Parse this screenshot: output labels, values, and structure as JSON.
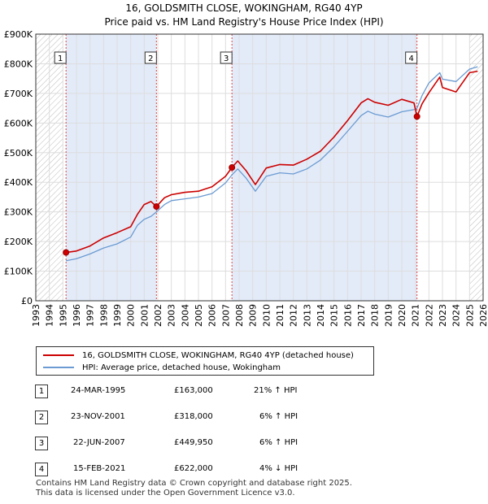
{
  "title": "16, GOLDSMITH CLOSE, WOKINGHAM, RG40 4YP",
  "subtitle": "Price paid vs. HM Land Registry's House Price Index (HPI)",
  "colors": {
    "property": "#cc0000",
    "hpi": "#6b9bd2",
    "shade": "#e3ebf9",
    "grid": "#dddddd",
    "vline": "#dd4444"
  },
  "legend": {
    "property_label": "16, GOLDSMITH CLOSE, WOKINGHAM, RG40 4YP (detached house)",
    "hpi_label": "HPI: Average price, detached house, Wokingham"
  },
  "transactions": [
    {
      "num": "1",
      "date": "24-MAR-1995",
      "price": "£163,000",
      "hpi": "21% ↑ HPI"
    },
    {
      "num": "2",
      "date": "23-NOV-2001",
      "price": "£318,000",
      "hpi": "6% ↑ HPI"
    },
    {
      "num": "3",
      "date": "22-JUN-2007",
      "price": "£449,950",
      "hpi": "6% ↑ HPI"
    },
    {
      "num": "4",
      "date": "15-FEB-2021",
      "price": "£622,000",
      "hpi": "4% ↓ HPI"
    }
  ],
  "footer": {
    "line1": "Contains HM Land Registry data © Crown copyright and database right 2025.",
    "line2": "This data is licensed under the Open Government Licence v3.0."
  },
  "chart_data": {
    "type": "line",
    "title": "16, GOLDSMITH CLOSE, WOKINGHAM, RG40 4YP",
    "subtitle": "Price paid vs. HM Land Registry's House Price Index (HPI)",
    "xlabel": "",
    "ylabel": "",
    "xlim": [
      1993,
      2026
    ],
    "ylim": [
      0,
      900000
    ],
    "x_ticks": [
      1993,
      1994,
      1995,
      1996,
      1997,
      1998,
      1999,
      2000,
      2001,
      2002,
      2003,
      2004,
      2005,
      2006,
      2007,
      2008,
      2009,
      2010,
      2011,
      2012,
      2013,
      2014,
      2015,
      2016,
      2017,
      2018,
      2019,
      2020,
      2021,
      2022,
      2023,
      2024,
      2025,
      2026
    ],
    "y_ticks": [
      {
        "value": 0,
        "label": "£0"
      },
      {
        "value": 100000,
        "label": "£100K"
      },
      {
        "value": 200000,
        "label": "£200K"
      },
      {
        "value": 300000,
        "label": "£300K"
      },
      {
        "value": 400000,
        "label": "£400K"
      },
      {
        "value": 500000,
        "label": "£500K"
      },
      {
        "value": 600000,
        "label": "£600K"
      },
      {
        "value": 700000,
        "label": "£700K"
      },
      {
        "value": 800000,
        "label": "£800K"
      },
      {
        "value": 900000,
        "label": "£900K"
      }
    ],
    "grid": true,
    "hatched_ranges": [
      [
        1993,
        1995.0
      ],
      [
        2025.0,
        2026
      ]
    ],
    "shaded_ranges": [
      [
        1995.23,
        2001.9
      ],
      [
        2007.47,
        2021.12
      ]
    ],
    "markers": [
      {
        "label": "1",
        "x": 1995.23,
        "y": 163000
      },
      {
        "label": "2",
        "x": 2001.9,
        "y": 318000
      },
      {
        "label": "3",
        "x": 2007.47,
        "y": 449950
      },
      {
        "label": "4",
        "x": 2021.12,
        "y": 622000
      }
    ],
    "series": [
      {
        "name": "16, GOLDSMITH CLOSE, WOKINGHAM, RG40 4YP (detached house)",
        "x": [
          1995.23,
          1996,
          1997,
          1998,
          1999,
          2000,
          2000.5,
          2001,
          2001.5,
          2001.9,
          2002.5,
          2003,
          2004,
          2005,
          2006,
          2007,
          2007.47,
          2007.9,
          2008.5,
          2009.2,
          2010,
          2011,
          2012,
          2013,
          2014,
          2015,
          2016,
          2017,
          2017.5,
          2018,
          2019,
          2020,
          2020.9,
          2021.12,
          2021.5,
          2022,
          2022.8,
          2023,
          2024,
          2025,
          2025.6
        ],
        "y": [
          163000,
          168000,
          185000,
          212000,
          230000,
          250000,
          292000,
          325000,
          335000,
          318000,
          348000,
          358000,
          366000,
          370000,
          385000,
          420000,
          449950,
          472000,
          440000,
          392000,
          448000,
          460000,
          458000,
          478000,
          505000,
          553000,
          608000,
          668000,
          682000,
          670000,
          660000,
          680000,
          668000,
          622000,
          665000,
          702000,
          755000,
          720000,
          705000,
          770000,
          775000
        ]
      },
      {
        "name": "HPI: Average price, detached house, Wokingham",
        "x": [
          1995.23,
          1996,
          1997,
          1998,
          1999,
          2000,
          2000.5,
          2001,
          2001.5,
          2001.9,
          2002.5,
          2003,
          2004,
          2005,
          2006,
          2007,
          2007.47,
          2007.9,
          2008.5,
          2009.2,
          2010,
          2011,
          2012,
          2013,
          2014,
          2015,
          2016,
          2017,
          2017.5,
          2018,
          2019,
          2020,
          2020.9,
          2021.12,
          2021.5,
          2022,
          2022.8,
          2023,
          2024,
          2025,
          2025.6
        ],
        "y": [
          135000,
          142000,
          158000,
          178000,
          192000,
          215000,
          255000,
          275000,
          285000,
          300000,
          325000,
          338000,
          344000,
          350000,
          362000,
          398000,
          425000,
          445000,
          415000,
          370000,
          420000,
          432000,
          428000,
          445000,
          475000,
          520000,
          572000,
          625000,
          640000,
          630000,
          620000,
          638000,
          645000,
          650000,
          693000,
          735000,
          770000,
          748000,
          740000,
          782000,
          790000
        ]
      }
    ]
  }
}
